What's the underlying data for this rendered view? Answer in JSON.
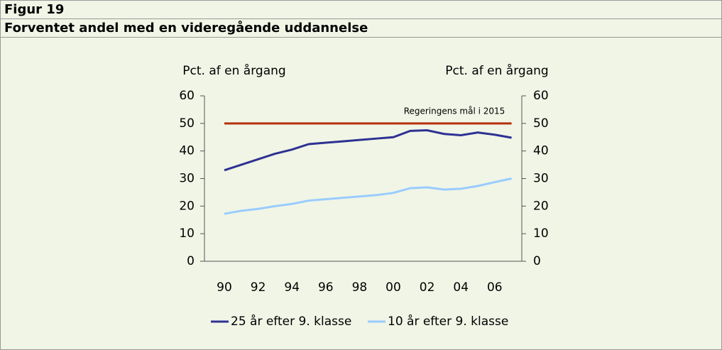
{
  "header": {
    "figure": "Figur 19"
  },
  "chart_data": {
    "type": "line",
    "title": "Forventet andel med en videregående uddannelse",
    "ylabel": "Pct. af en årgang",
    "y2label": "Pct. af en årgang",
    "annotation": "Regeringens mål i 2015",
    "categories": [
      "90",
      null,
      "92",
      null,
      "94",
      null,
      "96",
      null,
      "98",
      null,
      "00",
      null,
      "02",
      null,
      "04",
      null,
      "06",
      null
    ],
    "ylim": [
      0,
      60
    ],
    "yticks": [
      0,
      10,
      20,
      30,
      40,
      50,
      60
    ],
    "y2lim": [
      0,
      60
    ],
    "y2ticks": [
      0,
      10,
      20,
      30,
      40,
      50,
      60
    ],
    "series": [
      {
        "name": "25 år efter 9. klasse",
        "color": "#2e3192",
        "values": [
          33,
          35,
          37,
          39,
          40.5,
          42.5,
          43,
          43.5,
          44,
          44.5,
          45,
          47.3,
          47.5,
          46.2,
          45.7,
          46.7,
          45.9,
          44.8
        ]
      },
      {
        "name": "10 år efter 9. klasse",
        "color": "#99ccff",
        "values": [
          17.2,
          18.3,
          19,
          20,
          20.8,
          22,
          22.5,
          23,
          23.5,
          24,
          24.8,
          26.5,
          26.8,
          26,
          26.3,
          27.3,
          28.7,
          30
        ]
      },
      {
        "color": "#b5300b",
        "values": [
          50,
          50,
          50,
          50,
          50,
          50,
          50,
          50,
          50,
          50,
          50,
          50,
          50,
          50,
          50,
          50,
          50,
          50
        ]
      }
    ]
  }
}
